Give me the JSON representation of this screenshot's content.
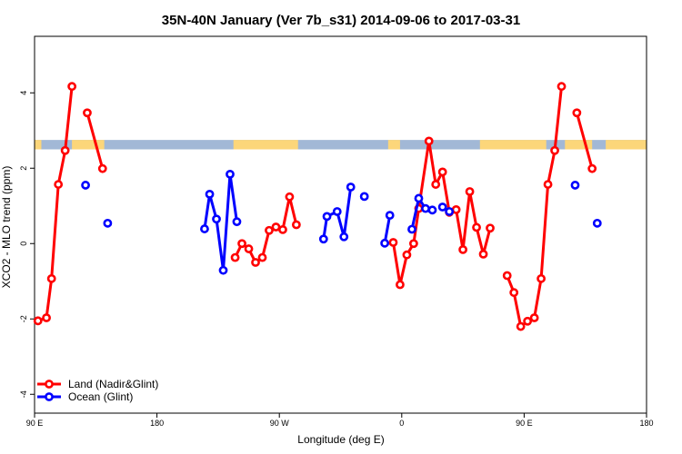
{
  "chart_data": {
    "type": "line",
    "title": "35N-40N January (Ver 7b_s31)   2014-09-06 to 2017-03-31",
    "xlabel": "Longitude (deg E)",
    "ylabel": "XCO2 - MLO trend (ppm)",
    "xlim": [
      0,
      360
    ],
    "ylim": [
      -4.5,
      5.5
    ],
    "x_ticks": [
      {
        "value": 0,
        "label": "90 E"
      },
      {
        "value": 72,
        "label": "180"
      },
      {
        "value": 144,
        "label": "90 W"
      },
      {
        "value": 216,
        "label": "0"
      },
      {
        "value": 288,
        "label": "90 E"
      },
      {
        "value": 360,
        "label": "180"
      }
    ],
    "y_ticks": [
      -4,
      -2,
      0,
      2,
      4
    ],
    "grid": false,
    "legend_position": "bottom-left",
    "land_band": {
      "y_range": [
        2.5,
        2.75
      ],
      "ocean_color": "#a2b8d6",
      "land_color": "#fcd67a",
      "land_segments": [
        [
          0,
          4
        ],
        [
          22,
          41
        ],
        [
          117,
          155
        ],
        [
          208,
          215
        ],
        [
          262,
          301
        ],
        [
          312,
          328
        ],
        [
          336,
          360
        ]
      ]
    },
    "series": [
      {
        "name": "Land (Nadir&Glint)",
        "color": "#ff0000",
        "segments": [
          [
            [
              2,
              -2.05
            ],
            [
              7,
              -1.97
            ],
            [
              10,
              -0.93
            ],
            [
              14,
              1.57
            ],
            [
              18,
              2.47
            ],
            [
              22,
              4.17
            ]
          ],
          [
            [
              31,
              3.47
            ],
            [
              40,
              1.99
            ]
          ],
          [
            [
              118,
              -0.37
            ],
            [
              122,
              0.0
            ],
            [
              126,
              -0.14
            ],
            [
              130,
              -0.5
            ],
            [
              134,
              -0.37
            ],
            [
              138,
              0.35
            ],
            [
              142,
              0.44
            ],
            [
              146,
              0.37
            ],
            [
              150,
              1.24
            ],
            [
              154,
              0.5
            ]
          ],
          [
            [
              211,
              0.03
            ],
            [
              215,
              -1.09
            ],
            [
              219,
              -0.3
            ],
            [
              223,
              0.0
            ],
            [
              226,
              0.93
            ],
            [
              232,
              2.72
            ],
            [
              236,
              1.57
            ],
            [
              240,
              1.9
            ],
            [
              244,
              0.83
            ],
            [
              248,
              0.9
            ],
            [
              252,
              -0.16
            ],
            [
              256,
              1.38
            ],
            [
              260,
              0.43
            ],
            [
              264,
              -0.28
            ],
            [
              268,
              0.41
            ]
          ],
          [
            [
              278,
              -0.85
            ],
            [
              282,
              -1.3
            ],
            [
              286,
              -2.2
            ],
            [
              290,
              -2.06
            ],
            [
              294,
              -1.97
            ],
            [
              298,
              -0.93
            ],
            [
              302,
              1.57
            ],
            [
              306,
              2.47
            ],
            [
              310,
              4.17
            ]
          ],
          [
            [
              319,
              3.47
            ],
            [
              328,
              1.99
            ]
          ]
        ]
      },
      {
        "name": "Ocean (Glint)",
        "color": "#0000ff",
        "segments": [
          [
            [
              30,
              1.55
            ]
          ],
          [
            [
              43,
              0.54
            ]
          ],
          [
            [
              100,
              0.39
            ],
            [
              103,
              1.31
            ],
            [
              107,
              0.65
            ],
            [
              111,
              -0.71
            ],
            [
              115,
              1.84
            ],
            [
              119,
              0.58
            ]
          ],
          [
            [
              170,
              0.12
            ],
            [
              172,
              0.72
            ],
            [
              178,
              0.85
            ],
            [
              182,
              0.18
            ],
            [
              186,
              1.5
            ]
          ],
          [
            [
              194,
              1.25
            ]
          ],
          [
            [
              206,
              0.01
            ],
            [
              209,
              0.75
            ]
          ],
          [
            [
              222,
              0.38
            ],
            [
              226,
              1.2
            ],
            [
              230,
              0.93
            ],
            [
              234,
              0.89
            ]
          ],
          [
            [
              240,
              0.97
            ],
            [
              244,
              0.85
            ]
          ],
          [
            [
              318,
              1.55
            ]
          ],
          [
            [
              331,
              0.54
            ]
          ]
        ]
      }
    ]
  }
}
